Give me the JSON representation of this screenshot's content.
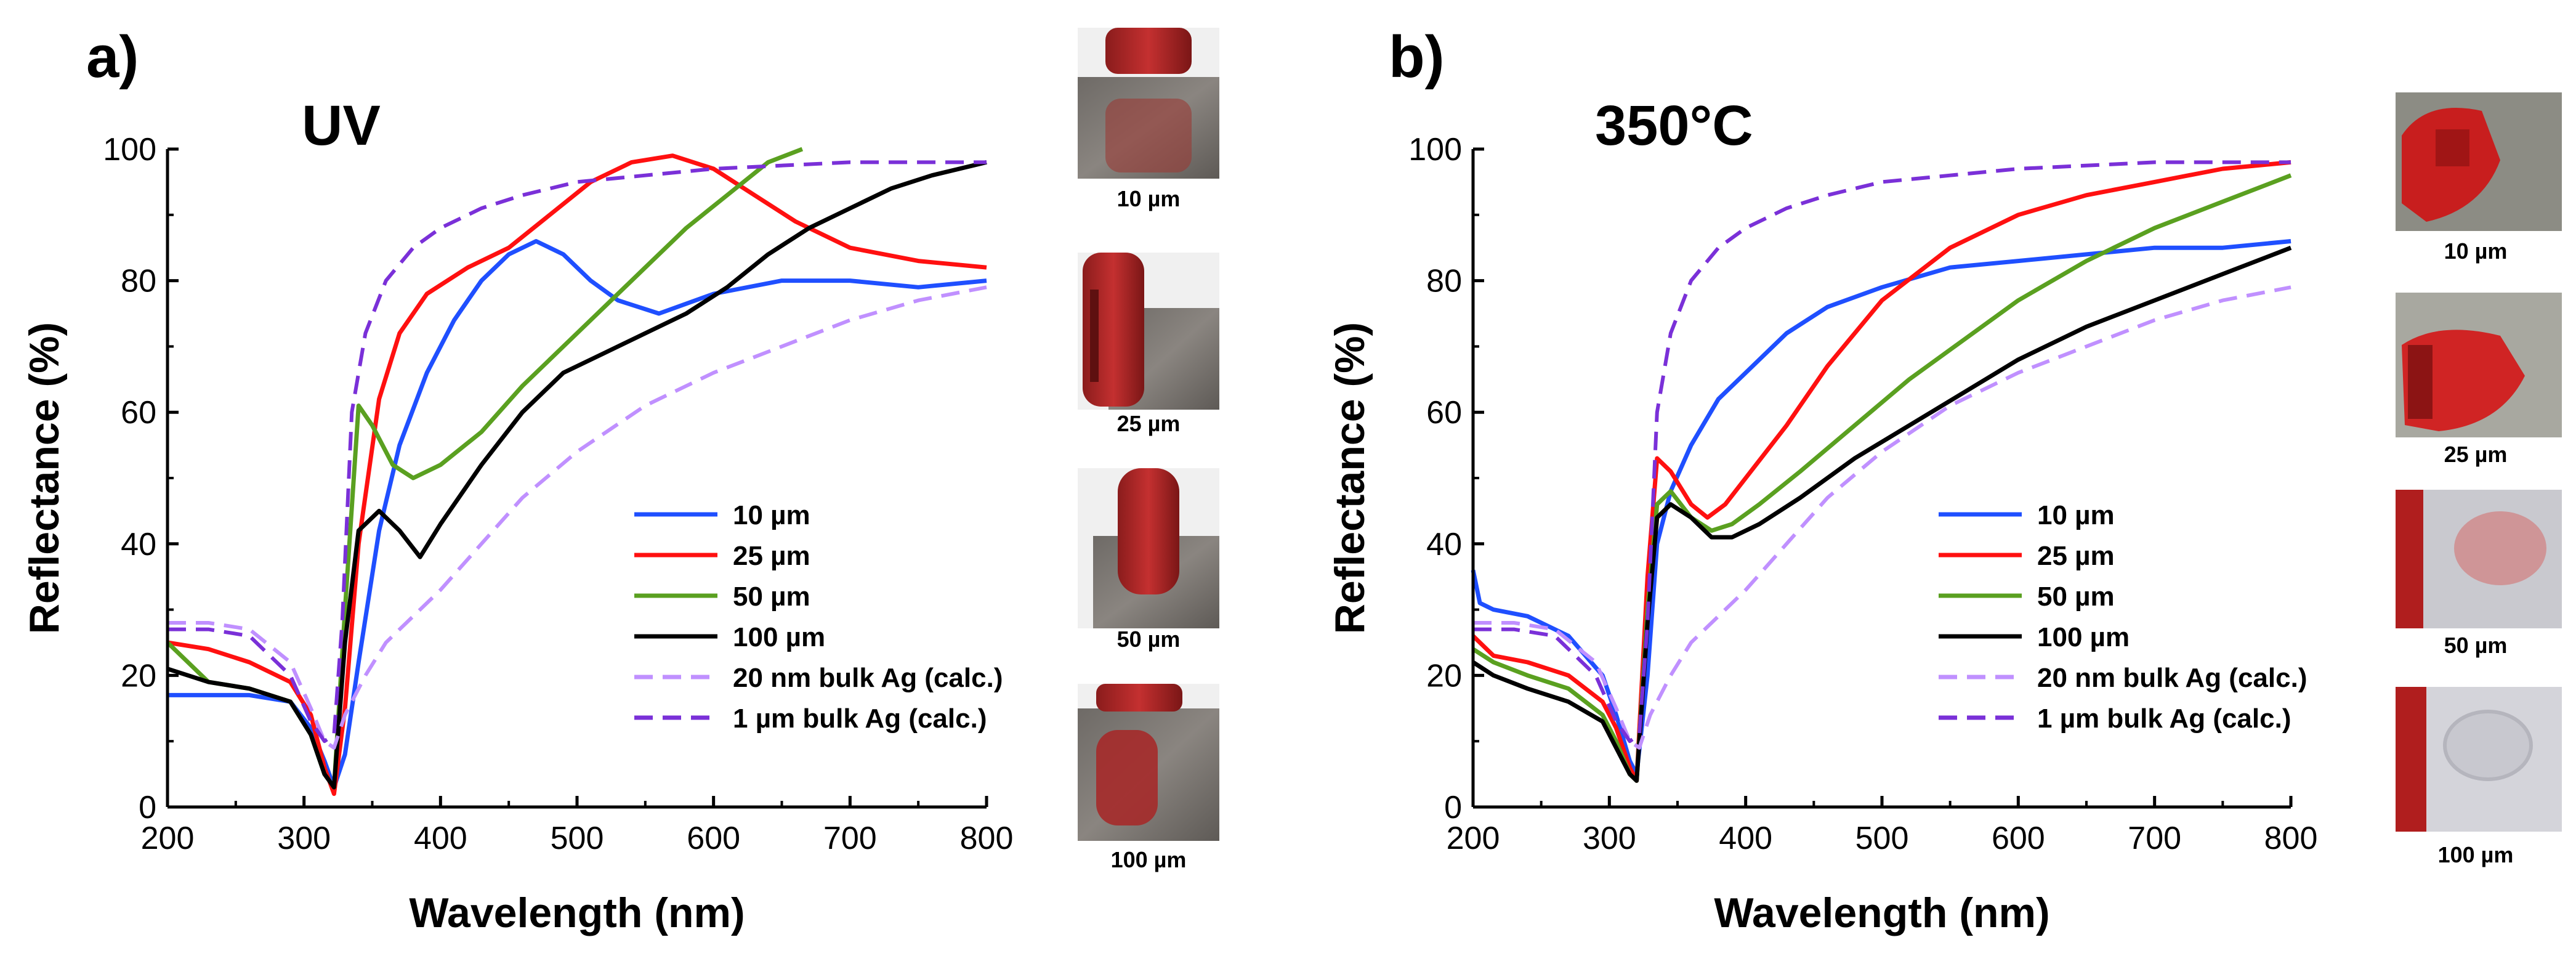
{
  "chart_data": [
    {
      "type": "line",
      "panel": "a)",
      "title": "UV",
      "xlabel": "Wavelength (nm)",
      "ylabel": "Reflectance (%)",
      "xlim": [
        200,
        800
      ],
      "ylim": [
        0,
        100
      ],
      "xticks": [
        200,
        300,
        400,
        500,
        600,
        700,
        800
      ],
      "yticks": [
        0,
        20,
        40,
        60,
        80,
        100
      ],
      "grid": false,
      "legend_position": "bottom-right",
      "series": [
        {
          "name": "10 µm",
          "color": "#1f4fff",
          "dashed": false,
          "x": [
            200,
            230,
            260,
            290,
            305,
            315,
            322,
            330,
            340,
            355,
            370,
            390,
            410,
            430,
            450,
            470,
            490,
            510,
            530,
            560,
            600,
            650,
            700,
            750,
            800
          ],
          "y": [
            17,
            17,
            17,
            16,
            12,
            7,
            3,
            8,
            22,
            42,
            55,
            66,
            74,
            80,
            84,
            86,
            84,
            80,
            77,
            75,
            78,
            80,
            80,
            79,
            80
          ]
        },
        {
          "name": "25 µm",
          "color": "#ff1010",
          "dashed": false,
          "x": [
            200,
            230,
            260,
            290,
            305,
            315,
            322,
            330,
            340,
            355,
            370,
            390,
            420,
            450,
            480,
            510,
            540,
            570,
            600,
            630,
            660,
            700,
            750,
            800
          ],
          "y": [
            25,
            24,
            22,
            19,
            14,
            6,
            2,
            15,
            40,
            62,
            72,
            78,
            82,
            85,
            90,
            95,
            98,
            99,
            97,
            93,
            89,
            85,
            83,
            82
          ]
        },
        {
          "name": "50 µm",
          "color": "#5aa020",
          "dashed": false,
          "x": [
            200,
            230,
            260,
            290,
            305,
            315,
            322,
            330,
            340,
            350,
            365,
            380,
            400,
            430,
            460,
            490,
            520,
            550,
            580,
            610,
            640,
            665
          ],
          "y": [
            25,
            19,
            18,
            16,
            11,
            5,
            3,
            30,
            61,
            58,
            52,
            50,
            52,
            57,
            64,
            70,
            76,
            82,
            88,
            93,
            98,
            100
          ]
        },
        {
          "name": "100 µm",
          "color": "#000000",
          "dashed": false,
          "x": [
            200,
            230,
            260,
            290,
            305,
            315,
            322,
            330,
            340,
            355,
            370,
            385,
            400,
            430,
            460,
            490,
            520,
            550,
            580,
            610,
            640,
            670,
            700,
            730,
            760,
            800
          ],
          "y": [
            21,
            19,
            18,
            16,
            11,
            5,
            3,
            25,
            42,
            45,
            42,
            38,
            43,
            52,
            60,
            66,
            69,
            72,
            75,
            79,
            84,
            88,
            91,
            94,
            96,
            98
          ]
        },
        {
          "name": "20 nm bulk Ag (calc.)",
          "color": "#c090ff",
          "dashed": true,
          "x": [
            200,
            230,
            260,
            290,
            305,
            315,
            322,
            330,
            345,
            360,
            380,
            400,
            430,
            460,
            500,
            550,
            600,
            650,
            700,
            750,
            800
          ],
          "y": [
            28,
            28,
            27,
            22,
            15,
            10,
            9,
            14,
            20,
            25,
            29,
            33,
            40,
            47,
            54,
            61,
            66,
            70,
            74,
            77,
            79
          ]
        },
        {
          "name": "1 µm bulk Ag (calc.)",
          "color": "#7a30d8",
          "dashed": true,
          "x": [
            200,
            230,
            260,
            290,
            305,
            315,
            322,
            328,
            335,
            345,
            360,
            380,
            400,
            430,
            460,
            500,
            550,
            600,
            700,
            800
          ],
          "y": [
            27,
            27,
            26,
            20,
            13,
            10,
            11,
            28,
            60,
            72,
            80,
            85,
            88,
            91,
            93,
            95,
            96,
            97,
            98,
            98
          ]
        }
      ]
    },
    {
      "type": "line",
      "panel": "b)",
      "title": "350°C",
      "xlabel": "Wavelength (nm)",
      "ylabel": "Reflectance (%)",
      "xlim": [
        200,
        800
      ],
      "ylim": [
        0,
        100
      ],
      "xticks": [
        200,
        300,
        400,
        500,
        600,
        700,
        800
      ],
      "yticks": [
        0,
        20,
        40,
        60,
        80,
        100
      ],
      "grid": false,
      "legend_position": "bottom-right",
      "series": [
        {
          "name": "10 µm",
          "color": "#1f4fff",
          "dashed": false,
          "x": [
            200,
            205,
            215,
            240,
            270,
            295,
            305,
            315,
            320,
            328,
            335,
            345,
            360,
            380,
            400,
            430,
            460,
            500,
            550,
            600,
            650,
            700,
            750,
            800
          ],
          "y": [
            36,
            31,
            30,
            29,
            26,
            20,
            14,
            7,
            5,
            20,
            40,
            48,
            55,
            62,
            66,
            72,
            76,
            79,
            82,
            83,
            84,
            85,
            85,
            86
          ]
        },
        {
          "name": "25 µm",
          "color": "#ff1010",
          "dashed": false,
          "x": [
            200,
            215,
            240,
            270,
            295,
            305,
            315,
            320,
            328,
            335,
            345,
            360,
            372,
            385,
            400,
            430,
            460,
            500,
            550,
            600,
            650,
            700,
            750,
            800
          ],
          "y": [
            26,
            23,
            22,
            20,
            16,
            12,
            6,
            4,
            35,
            53,
            51,
            46,
            44,
            46,
            50,
            58,
            67,
            77,
            85,
            90,
            93,
            95,
            97,
            98
          ]
        },
        {
          "name": "50 µm",
          "color": "#5aa020",
          "dashed": false,
          "x": [
            200,
            215,
            240,
            270,
            295,
            305,
            315,
            320,
            328,
            335,
            345,
            360,
            375,
            390,
            410,
            440,
            480,
            520,
            560,
            600,
            650,
            700,
            750,
            800
          ],
          "y": [
            24,
            22,
            20,
            18,
            14,
            10,
            5,
            4,
            30,
            46,
            48,
            44,
            42,
            43,
            46,
            51,
            58,
            65,
            71,
            77,
            83,
            88,
            92,
            96
          ]
        },
        {
          "name": "100 µm",
          "color": "#000000",
          "dashed": false,
          "x": [
            200,
            215,
            240,
            270,
            295,
            305,
            315,
            320,
            328,
            335,
            345,
            360,
            375,
            390,
            410,
            440,
            480,
            520,
            560,
            600,
            650,
            700,
            750,
            800
          ],
          "y": [
            22,
            20,
            18,
            16,
            13,
            9,
            5,
            4,
            28,
            44,
            46,
            44,
            41,
            41,
            43,
            47,
            53,
            58,
            63,
            68,
            73,
            77,
            81,
            85
          ]
        },
        {
          "name": "20 nm bulk Ag (calc.)",
          "color": "#c090ff",
          "dashed": true,
          "x": [
            200,
            230,
            260,
            290,
            305,
            315,
            322,
            330,
            345,
            360,
            380,
            400,
            430,
            460,
            500,
            550,
            600,
            650,
            700,
            750,
            800
          ],
          "y": [
            28,
            28,
            27,
            22,
            15,
            10,
            9,
            14,
            20,
            25,
            29,
            33,
            40,
            47,
            54,
            61,
            66,
            70,
            74,
            77,
            79
          ]
        },
        {
          "name": "1 µm bulk Ag (calc.)",
          "color": "#7a30d8",
          "dashed": true,
          "x": [
            200,
            230,
            260,
            290,
            305,
            315,
            322,
            328,
            335,
            345,
            360,
            380,
            400,
            430,
            460,
            500,
            550,
            600,
            700,
            800
          ],
          "y": [
            27,
            27,
            26,
            20,
            13,
            10,
            11,
            28,
            60,
            72,
            80,
            85,
            88,
            91,
            93,
            95,
            96,
            97,
            98,
            98
          ]
        }
      ]
    }
  ],
  "photos": [
    {
      "panel": "a)",
      "labels": [
        "10 µm",
        "25 µm",
        "50 µm",
        "100 µm"
      ]
    },
    {
      "panel": "b)",
      "labels": [
        "10 µm",
        "25 µm",
        "50 µm",
        "100 µm"
      ]
    }
  ]
}
